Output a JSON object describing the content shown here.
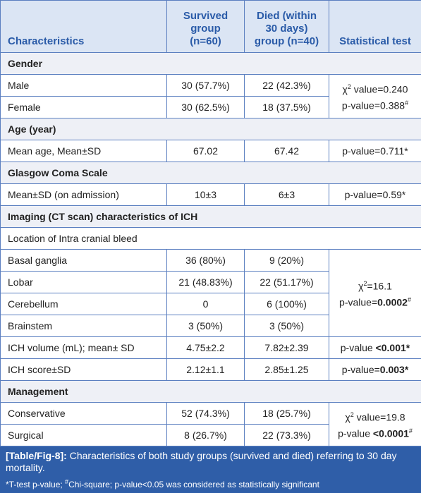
{
  "header": [
    [
      "Characteristics"
    ],
    [
      "Survived",
      "group",
      "(n=60)"
    ],
    [
      "Died (within",
      "30 days)",
      "group (n=40)"
    ],
    [
      "Statistical test"
    ]
  ],
  "rows": [
    {
      "kind": "section",
      "cells": [
        "Gender"
      ]
    },
    {
      "kind": "data",
      "cells": [
        "Male",
        "30 (57.7%)",
        "22 (42.3%)",
        {
          "rowspan": 2,
          "lines": [
            [
              "χ",
              {
                "text": "2",
                "sup": true
              },
              " value=0.240"
            ],
            [
              "p-value=0.388",
              {
                "text": "#",
                "sup": true
              }
            ]
          ]
        }
      ]
    },
    {
      "kind": "data",
      "cells": [
        "Female",
        "30 (62.5%)",
        "18 (37.5%)"
      ]
    },
    {
      "kind": "section",
      "cells": [
        "Age (year)"
      ]
    },
    {
      "kind": "data",
      "cells": [
        "Mean age, Mean±SD",
        "67.02",
        "67.42",
        "p-value=0.711*"
      ]
    },
    {
      "kind": "section",
      "cells": [
        "Glasgow Coma Scale"
      ]
    },
    {
      "kind": "data",
      "cells": [
        "Mean±SD (on admission)",
        "10±3",
        "6±3",
        "p-value=0.59*"
      ]
    },
    {
      "kind": "section",
      "cells": [
        "Imaging (CT scan) characteristics of ICH"
      ]
    },
    {
      "kind": "sub",
      "cells": [
        "Location of Intra cranial bleed"
      ]
    },
    {
      "kind": "data",
      "cells": [
        "Basal ganglia",
        "36 (80%)",
        "9 (20%)",
        {
          "rowspan": 4,
          "lines": [
            [
              "χ",
              {
                "text": "2",
                "sup": true
              },
              "=16.1"
            ],
            [
              "p-value=",
              {
                "text": "0.0002",
                "bold": true
              },
              {
                "text": "#",
                "sup": true
              }
            ]
          ]
        }
      ]
    },
    {
      "kind": "data",
      "cells": [
        "Lobar",
        "21 (48.83%)",
        "22 (51.17%)"
      ]
    },
    {
      "kind": "data",
      "cells": [
        "Cerebellum",
        "0",
        "6 (100%)"
      ]
    },
    {
      "kind": "data",
      "cells": [
        "Brainstem",
        "3 (50%)",
        "3 (50%)"
      ]
    },
    {
      "kind": "data",
      "cells": [
        "ICH volume (mL); mean± SD",
        "4.75±2.2",
        "7.82±2.39",
        {
          "lines": [
            [
              "p-value ",
              {
                "text": "<0.001*",
                "bold": true
              }
            ]
          ]
        }
      ]
    },
    {
      "kind": "data",
      "cells": [
        "ICH score±SD",
        "2.12±1.1",
        "2.85±1.25",
        {
          "lines": [
            [
              "p-value=",
              {
                "text": "0.003*",
                "bold": true
              }
            ]
          ]
        }
      ]
    },
    {
      "kind": "section",
      "cells": [
        "Management"
      ]
    },
    {
      "kind": "data",
      "cells": [
        "Conservative",
        "52 (74.3%)",
        "18 (25.7%)",
        {
          "rowspan": 2,
          "lines": [
            [
              "χ",
              {
                "text": "2",
                "sup": true
              },
              " value=19.8"
            ],
            [
              "p-value ",
              {
                "text": "<0.0001",
                "bold": true
              },
              {
                "text": "#",
                "sup": true
              }
            ]
          ]
        }
      ]
    },
    {
      "kind": "data",
      "cells": [
        "Surgical",
        "8 (26.7%)",
        "22 (73.3%)"
      ]
    }
  ],
  "caption": {
    "label": "[Table/Fig-8]:",
    "text": "Characteristics of both study groups (survived and died) referring to 30 day mortality.",
    "note": [
      "*T-test p-value; ",
      {
        "text": "#",
        "sup": true
      },
      "Chi-square; p-value<0.05 was considered as statistically significant"
    ]
  }
}
